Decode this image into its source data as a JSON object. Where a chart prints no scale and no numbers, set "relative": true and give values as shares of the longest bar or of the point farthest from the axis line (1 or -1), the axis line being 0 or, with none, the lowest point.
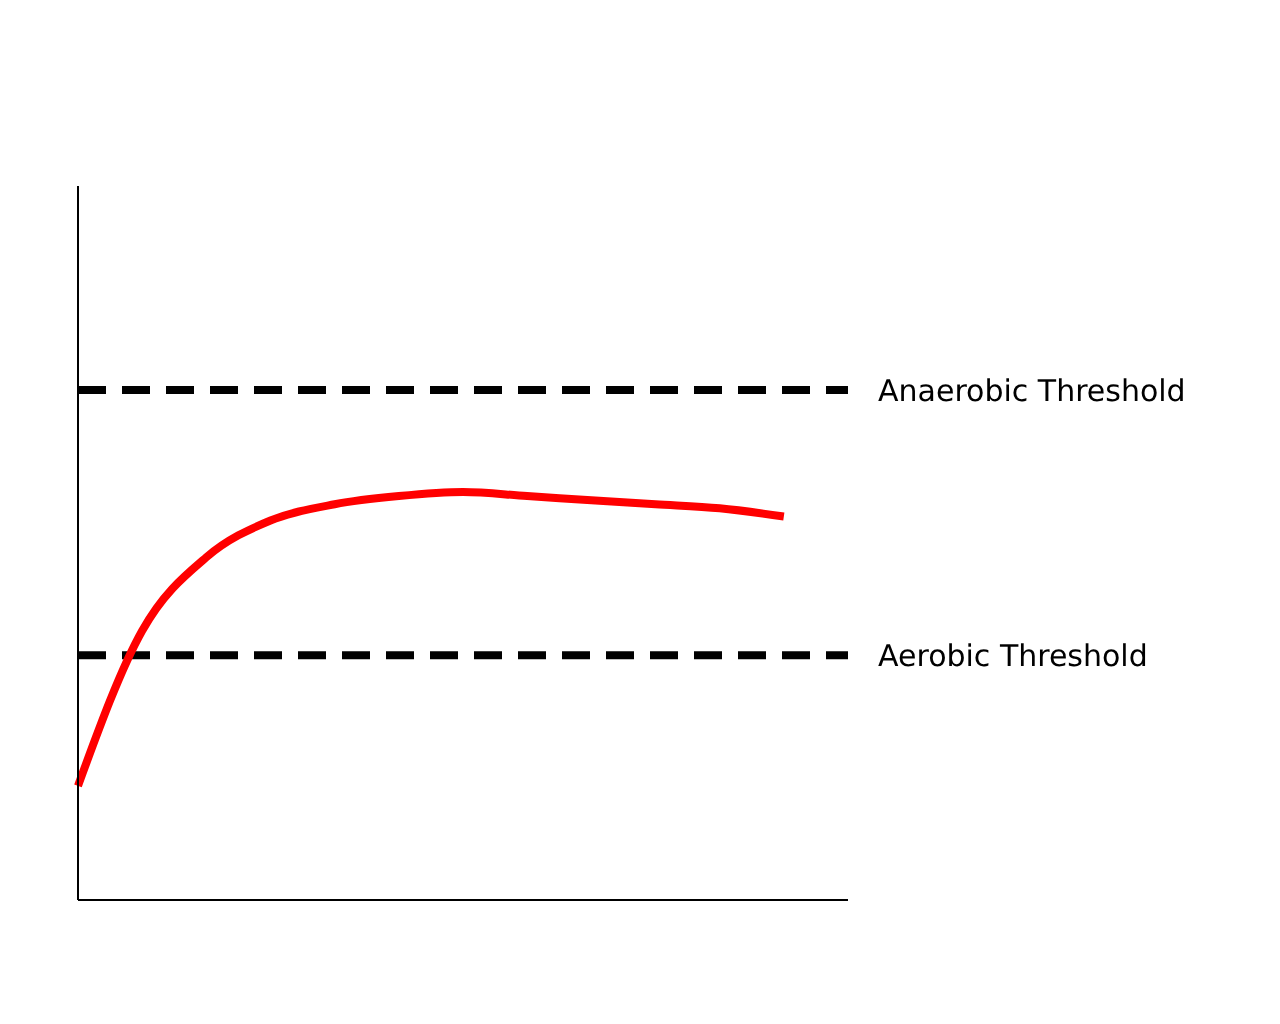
{
  "chart_data": {
    "type": "line",
    "relative": true,
    "marker": "none",
    "categories": [
      null,
      null,
      null,
      null,
      null,
      null,
      null,
      null,
      null,
      null,
      null,
      null,
      null
    ],
    "series": [
      {
        "color": "#ff0000",
        "values": [
          0.28,
          0.66,
          0.84,
          0.93,
          0.97,
          0.99,
          1,
          0.99,
          0.98,
          0.97,
          0.96,
          0.94,
          null
        ]
      }
    ],
    "ref_lines": [
      {
        "axis": "y",
        "value": 1.25,
        "label": "Anaerobic Threshold",
        "color": "#000000",
        "line_style": "dashed"
      },
      {
        "axis": "y",
        "value": 0.6,
        "label": "Aerobic Threshold",
        "color": "#000000",
        "line_style": "dashed"
      }
    ]
  }
}
